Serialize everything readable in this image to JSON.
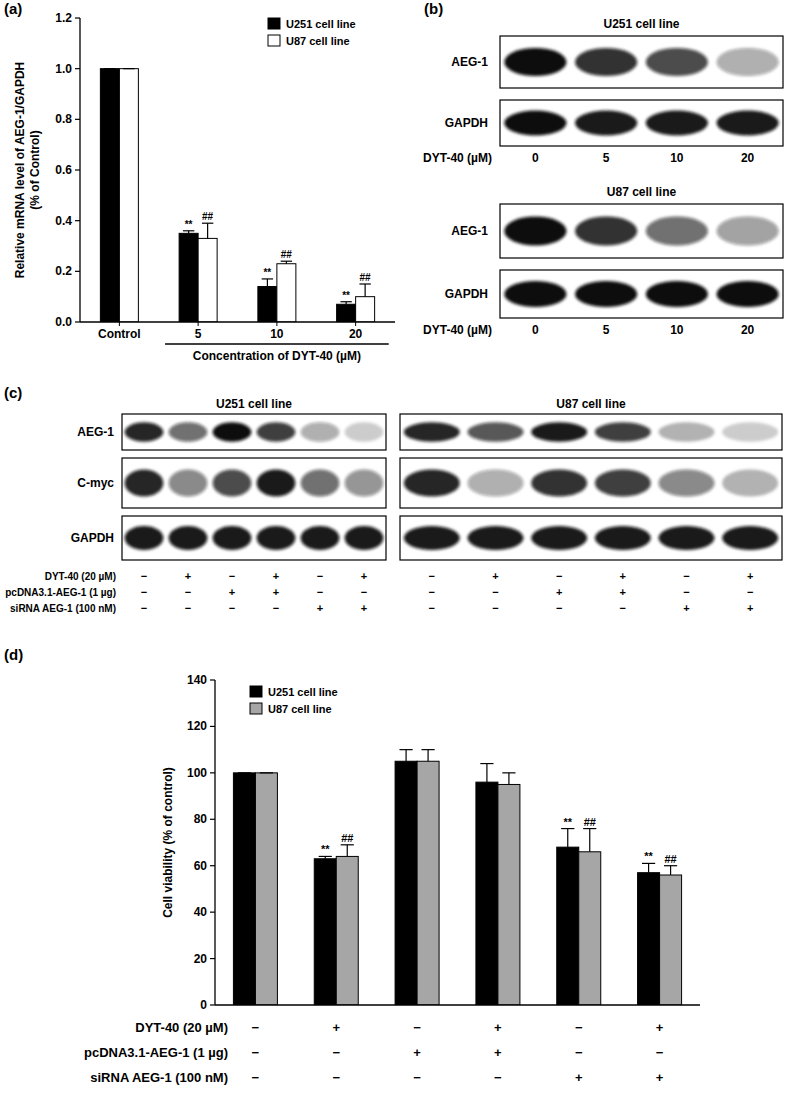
{
  "chart_data": [
    {
      "type": "bar",
      "title": "(a)",
      "y_label": [
        "Relative mRNA level of AEG-1/GAPDH",
        "(% of Control)"
      ],
      "x_label": "Concentration of DYT-40 (µM)",
      "categories": [
        "Control",
        "5",
        "10",
        "20"
      ],
      "series": [
        {
          "name": "U251 cell line",
          "color": "#000000",
          "values": [
            1.0,
            0.35,
            0.14,
            0.07
          ],
          "errors": [
            0,
            0.01,
            0.03,
            0.01
          ],
          "significance": [
            null,
            "**",
            "**",
            "**"
          ]
        },
        {
          "name": "U87 cell line",
          "color": "#ffffff",
          "values": [
            1.0,
            0.33,
            0.23,
            0.1
          ],
          "errors": [
            0,
            0.06,
            0.01,
            0.05
          ],
          "significance": [
            null,
            "##",
            "##",
            "##"
          ]
        }
      ],
      "ylim": [
        0,
        1.2
      ],
      "yticks": [
        {
          "value": 0,
          "label": "0.0"
        },
        0.2,
        0.4,
        0.6,
        0.8,
        {
          "value": 1,
          "label": "1.0"
        },
        1.2
      ],
      "legend": "upper right"
    },
    {
      "type": "blot",
      "title": "(b)",
      "x_label": "DYT-40 (µM)",
      "categories": [
        "0",
        "5",
        "10",
        "20"
      ],
      "panels": [
        {
          "name": "U251 cell line",
          "rows": [
            {
              "name": "AEG-1",
              "values": [
                1.0,
                0.85,
                0.75,
                0.35
              ]
            },
            {
              "name": "GAPDH",
              "values": [
                1.0,
                0.95,
                0.95,
                0.95
              ]
            }
          ]
        },
        {
          "name": "U87 cell line",
          "rows": [
            {
              "name": "AEG-1",
              "values": [
                1.0,
                0.85,
                0.6,
                0.4
              ]
            },
            {
              "name": "GAPDH",
              "values": [
                1.0,
                1.0,
                1.0,
                1.0
              ]
            }
          ]
        }
      ]
    },
    {
      "type": "blot",
      "title": "(c)",
      "conditions": [
        {
          "name": "DYT-40 (20 µM)",
          "signs": [
            "−",
            "+",
            "−",
            "+",
            "−",
            "+"
          ]
        },
        {
          "name": "pcDNA3.1-AEG-1 (1 µg)",
          "signs": [
            "−",
            "−",
            "+",
            "+",
            "−",
            "−"
          ]
        },
        {
          "name": "siRNA AEG-1 (100 nM)",
          "signs": [
            "−",
            "−",
            "−",
            "−",
            "+",
            "+"
          ]
        }
      ],
      "panels": [
        {
          "name": "U251 cell line",
          "rows": [
            {
              "name": "AEG-1",
              "values": [
                0.9,
                0.6,
                1.0,
                0.8,
                0.35,
                0.2
              ]
            },
            {
              "name": "C-myc",
              "values": [
                0.9,
                0.5,
                0.75,
                0.95,
                0.6,
                0.45
              ]
            },
            {
              "name": "GAPDH",
              "values": [
                0.95,
                0.95,
                0.95,
                0.95,
                0.95,
                0.95
              ]
            }
          ]
        },
        {
          "name": "U87 cell line",
          "rows": [
            {
              "name": "AEG-1",
              "values": [
                0.9,
                0.7,
                0.95,
                0.8,
                0.3,
                0.2
              ]
            },
            {
              "name": "C-myc",
              "values": [
                0.9,
                0.35,
                0.85,
                0.8,
                0.5,
                0.3
              ]
            },
            {
              "name": "GAPDH",
              "values": [
                0.95,
                0.95,
                0.95,
                0.95,
                0.95,
                0.95
              ]
            }
          ]
        }
      ]
    },
    {
      "type": "bar",
      "title": "(d)",
      "y_label": "Cell viability (% of control)",
      "categories": [
        null,
        null,
        null,
        null,
        null,
        null
      ],
      "conditions": [
        {
          "name": "DYT-40 (20 µM)",
          "signs": [
            "−",
            "+",
            "−",
            "+",
            "−",
            "+"
          ]
        },
        {
          "name": "pcDNA3.1-AEG-1 (1 µg)",
          "signs": [
            "−",
            "−",
            "+",
            "+",
            "−",
            "−"
          ]
        },
        {
          "name": "siRNA AEG-1 (100 nM)",
          "signs": [
            "−",
            "−",
            "−",
            "−",
            "+",
            "+"
          ]
        }
      ],
      "series": [
        {
          "name": "U251 cell line",
          "color": "#000000",
          "values": [
            100,
            63,
            105,
            96,
            68,
            57
          ],
          "errors": [
            0,
            1,
            5,
            8,
            8,
            4
          ],
          "significance": [
            null,
            "**",
            null,
            null,
            "**",
            "**"
          ]
        },
        {
          "name": "U87 cell line",
          "color": "#a6a6a6",
          "values": [
            100,
            64,
            105,
            95,
            66,
            56
          ],
          "errors": [
            0,
            5,
            5,
            5,
            10,
            4
          ],
          "significance": [
            null,
            "##",
            null,
            null,
            "##",
            "##"
          ]
        }
      ],
      "ylim": [
        0,
        140
      ],
      "yticks": [
        0,
        20,
        40,
        60,
        80,
        100,
        120,
        140
      ],
      "legend": "upper left"
    }
  ]
}
